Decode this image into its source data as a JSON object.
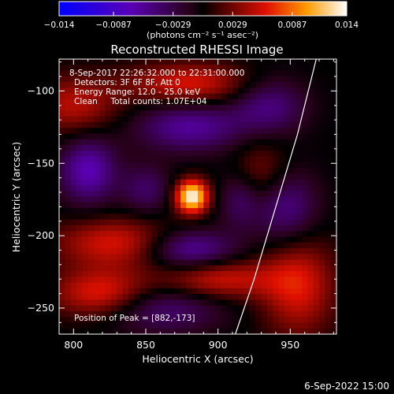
{
  "chart_data": {
    "type": "heatmap",
    "title": "Reconstructed RHESSI Image",
    "xlabel": "Heliocentric X (arcsec)",
    "ylabel": "Heliocentric Y (arcsec)",
    "xlim": [
      790,
      982
    ],
    "ylim": [
      -268,
      -78
    ],
    "x_ticks": [
      800,
      850,
      900,
      950
    ],
    "y_ticks": [
      -100,
      -150,
      -200,
      -250
    ],
    "colorbar": {
      "label_html": "(photons cm⁻² s⁻¹ asec⁻²)",
      "min": -0.014,
      "max": 0.014,
      "tick_labels": [
        "-0.014",
        "-0.0087",
        "-0.0029",
        "0.0029",
        "0.0087",
        "0.014"
      ],
      "tick_values": [
        -0.014,
        -0.0087,
        -0.0029,
        0.0029,
        0.0087,
        0.014
      ]
    },
    "annotations": [
      "8-Sep-2017 22:26:32.000 to 22:31:00.000",
      "Detectors: 3F 6F 8F, Att 0",
      "Energy Range: 12.0 - 25.0 keV",
      "Clean     Total counts: 1.07E+04"
    ],
    "peak_label": "Position of Peak = [882,-173]",
    "peak": {
      "x": 882,
      "y": -173
    },
    "limb_curve": [
      [
        912,
        -268
      ],
      [
        925,
        -230
      ],
      [
        940,
        -180
      ],
      [
        955,
        -130
      ],
      [
        968,
        -78
      ]
    ],
    "components": [
      {
        "x": 882,
        "y": -173,
        "amp": 0.014,
        "sx": 8,
        "sy": 8
      },
      {
        "x": 800,
        "y": -110,
        "amp": 0.005,
        "sx": 22,
        "sy": 14
      },
      {
        "x": 810,
        "y": -155,
        "amp": -0.007,
        "sx": 14,
        "sy": 16
      },
      {
        "x": 830,
        "y": -205,
        "amp": 0.006,
        "sx": 30,
        "sy": 12
      },
      {
        "x": 820,
        "y": -240,
        "amp": 0.007,
        "sx": 24,
        "sy": 12
      },
      {
        "x": 880,
        "y": -125,
        "amp": -0.006,
        "sx": 26,
        "sy": 12
      },
      {
        "x": 880,
        "y": -95,
        "amp": 0.006,
        "sx": 30,
        "sy": 10
      },
      {
        "x": 935,
        "y": -110,
        "amp": -0.005,
        "sx": 18,
        "sy": 14
      },
      {
        "x": 930,
        "y": -160,
        "amp": 0.004,
        "sx": 14,
        "sy": 18
      },
      {
        "x": 945,
        "y": -180,
        "amp": -0.006,
        "sx": 16,
        "sy": 18
      },
      {
        "x": 955,
        "y": -235,
        "amp": 0.006,
        "sx": 18,
        "sy": 24
      },
      {
        "x": 880,
        "y": -210,
        "amp": -0.007,
        "sx": 22,
        "sy": 10
      },
      {
        "x": 900,
        "y": -230,
        "amp": 0.006,
        "sx": 28,
        "sy": 10
      },
      {
        "x": 860,
        "y": -250,
        "amp": -0.005,
        "sx": 30,
        "sy": 12
      },
      {
        "x": 850,
        "y": -168,
        "amp": -0.004,
        "sx": 12,
        "sy": 12
      },
      {
        "x": 915,
        "y": -175,
        "amp": -0.004,
        "sx": 10,
        "sy": 14
      }
    ]
  },
  "footer": {
    "timestamp": "6-Sep-2022 15:00"
  }
}
